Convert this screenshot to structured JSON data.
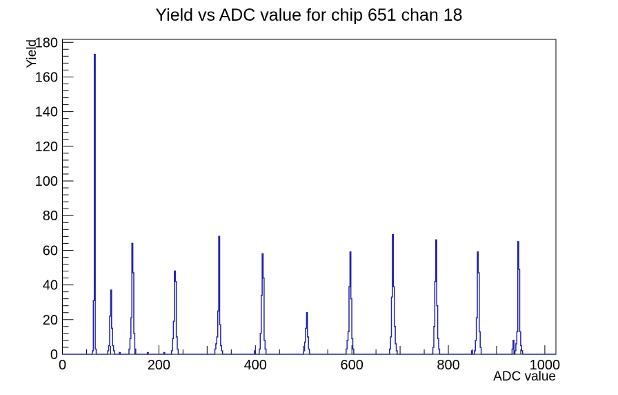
{
  "window": {
    "title": "Yield vs ADC value for chip 651 chan 18"
  },
  "chart_data": {
    "type": "bar",
    "subtype": "histogram-step",
    "title": "Yield vs ADC value for chip 651 chan 18",
    "xlabel": "ADC value",
    "ylabel": "Yield",
    "xlim": [
      0,
      1023
    ],
    "ylim": [
      0,
      181.7
    ],
    "bin_width": 2,
    "grid": false,
    "legend": false,
    "x_tick_labels": [
      "0",
      "200",
      "400",
      "600",
      "800",
      "1000"
    ],
    "x_label_step": 200,
    "x_medium_tick_step": 100,
    "x_minor_tick_step": 50,
    "y_tick_labels": [
      "0",
      "20",
      "40",
      "60",
      "80",
      "100",
      "120",
      "140",
      "160",
      "180"
    ],
    "y_label_step": 20,
    "y_minor_tick_step": 4,
    "line_color": "#2222aa",
    "frame_color": "#000000",
    "background_color": "#ffffff",
    "bins": [
      [
        62,
        2
      ],
      [
        64,
        31
      ],
      [
        66,
        173
      ],
      [
        68,
        3
      ],
      [
        94,
        2
      ],
      [
        96,
        5
      ],
      [
        98,
        22
      ],
      [
        100,
        37
      ],
      [
        102,
        15
      ],
      [
        104,
        5
      ],
      [
        106,
        2
      ],
      [
        118,
        1
      ],
      [
        138,
        3
      ],
      [
        140,
        9
      ],
      [
        142,
        21
      ],
      [
        144,
        64
      ],
      [
        146,
        47
      ],
      [
        148,
        12
      ],
      [
        150,
        3
      ],
      [
        176,
        1
      ],
      [
        210,
        1
      ],
      [
        226,
        2
      ],
      [
        228,
        9
      ],
      [
        230,
        19
      ],
      [
        232,
        48
      ],
      [
        234,
        42
      ],
      [
        236,
        10
      ],
      [
        238,
        3
      ],
      [
        316,
        3
      ],
      [
        318,
        6
      ],
      [
        320,
        10
      ],
      [
        322,
        25
      ],
      [
        324,
        68
      ],
      [
        326,
        17
      ],
      [
        328,
        5
      ],
      [
        330,
        2
      ],
      [
        398,
        2
      ],
      [
        408,
        3
      ],
      [
        410,
        12
      ],
      [
        412,
        34
      ],
      [
        414,
        58
      ],
      [
        416,
        44
      ],
      [
        418,
        8
      ],
      [
        420,
        3
      ],
      [
        500,
        2
      ],
      [
        502,
        7
      ],
      [
        504,
        15
      ],
      [
        506,
        24
      ],
      [
        508,
        10
      ],
      [
        510,
        3
      ],
      [
        588,
        3
      ],
      [
        590,
        8
      ],
      [
        592,
        13
      ],
      [
        594,
        39
      ],
      [
        596,
        59
      ],
      [
        598,
        32
      ],
      [
        600,
        9
      ],
      [
        602,
        3
      ],
      [
        678,
        3
      ],
      [
        680,
        10
      ],
      [
        682,
        33
      ],
      [
        684,
        69
      ],
      [
        686,
        39
      ],
      [
        688,
        16
      ],
      [
        690,
        6
      ],
      [
        692,
        2
      ],
      [
        768,
        4
      ],
      [
        770,
        16
      ],
      [
        772,
        42
      ],
      [
        774,
        66
      ],
      [
        776,
        28
      ],
      [
        778,
        9
      ],
      [
        780,
        3
      ],
      [
        848,
        2
      ],
      [
        854,
        2
      ],
      [
        856,
        8
      ],
      [
        858,
        21
      ],
      [
        860,
        59
      ],
      [
        862,
        47
      ],
      [
        864,
        13
      ],
      [
        866,
        4
      ],
      [
        932,
        3
      ],
      [
        934,
        8
      ],
      [
        938,
        2
      ],
      [
        940,
        6
      ],
      [
        942,
        13
      ],
      [
        944,
        65
      ],
      [
        946,
        49
      ],
      [
        948,
        13
      ],
      [
        950,
        5
      ],
      [
        952,
        2
      ]
    ]
  }
}
